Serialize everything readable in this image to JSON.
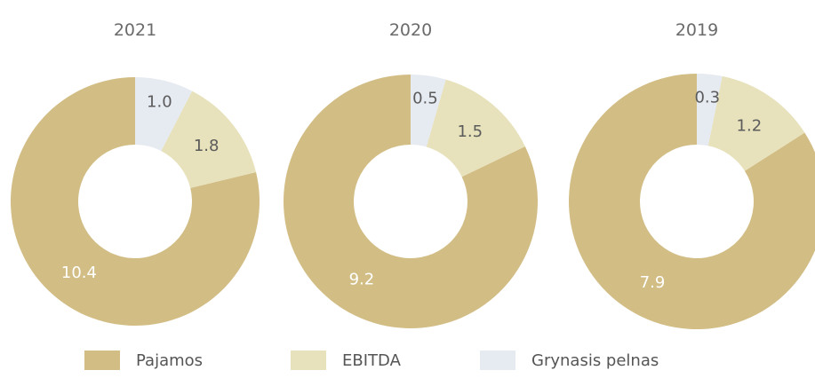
{
  "colors": {
    "Pajamos": "#d2bd85",
    "EBITDA": "#e7e2bc",
    "Grynasis pelnas": "#e6eaf1"
  },
  "label_colors": {
    "Pajamos": "#ffffff",
    "EBITDA": "#5b5b5b",
    "Grynasis pelnas": "#5b5b5b"
  },
  "legend": [
    {
      "name": "Pajamos"
    },
    {
      "name": "EBITDA"
    },
    {
      "name": "Grynasis pelnas"
    }
  ],
  "chart_data": [
    {
      "type": "pie",
      "variant": "donut",
      "title": "2021",
      "slices": [
        {
          "name": "Pajamos",
          "value": 10.4,
          "label": "10.4"
        },
        {
          "name": "EBITDA",
          "value": 1.8,
          "label": "1.8"
        },
        {
          "name": "Grynasis pelnas",
          "value": 1.0,
          "label": "1.0"
        }
      ]
    },
    {
      "type": "pie",
      "variant": "donut",
      "title": "2020",
      "slices": [
        {
          "name": "Pajamos",
          "value": 9.2,
          "label": "9.2"
        },
        {
          "name": "EBITDA",
          "value": 1.5,
          "label": "1.5"
        },
        {
          "name": "Grynasis pelnas",
          "value": 0.5,
          "label": "0.5"
        }
      ]
    },
    {
      "type": "pie",
      "variant": "donut",
      "title": "2019",
      "slices": [
        {
          "name": "Pajamos",
          "value": 7.9,
          "label": "7.9"
        },
        {
          "name": "EBITDA",
          "value": 1.2,
          "label": "1.2"
        },
        {
          "name": "Grynasis pelnas",
          "value": 0.3,
          "label": "0.3"
        }
      ]
    }
  ]
}
